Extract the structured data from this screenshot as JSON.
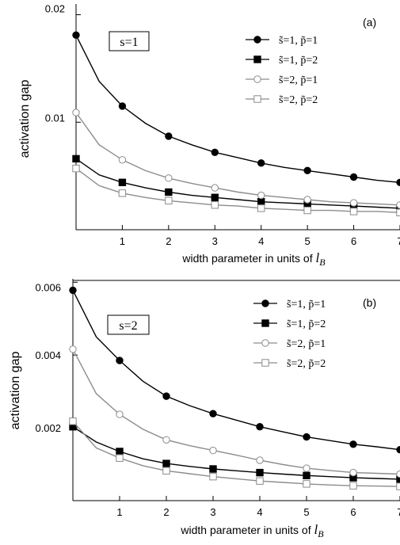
{
  "chart_data": [
    {
      "type": "line",
      "panel_label": "(a)",
      "inset_label": "s=1",
      "ylabel": "activation gap",
      "xlabel": "width parameter in units of",
      "xlabel_symbol": "l",
      "xlabel_subscript": "B",
      "xlim": [
        0,
        7
      ],
      "ylim": [
        0,
        0.021
      ],
      "xticks": [
        1,
        2,
        3,
        4,
        5,
        6,
        7
      ],
      "yticks": [
        0.01,
        0.02
      ],
      "ytick_labels": [
        "0.01",
        "0.02"
      ],
      "legend_position": "top-right",
      "series": [
        {
          "name": "s̃=1, p̃=1",
          "color": "#000000",
          "marker": "filled-circle",
          "x": [
            0,
            0.5,
            1,
            1.5,
            2,
            2.5,
            3,
            3.5,
            4,
            4.5,
            5,
            5.5,
            6,
            6.5,
            7
          ],
          "y": [
            0.0181,
            0.0138,
            0.0115,
            0.0099,
            0.0087,
            0.0079,
            0.0072,
            0.0067,
            0.0062,
            0.0058,
            0.0055,
            0.0052,
            0.0049,
            0.0046,
            0.0044
          ],
          "marker_indices": [
            0,
            2,
            4,
            6,
            8,
            10,
            12,
            14
          ]
        },
        {
          "name": "s̃=1, p̃=2",
          "color": "#000000",
          "marker": "filled-square",
          "x": [
            0,
            0.5,
            1,
            1.5,
            2,
            2.5,
            3,
            3.5,
            4,
            4.5,
            5,
            5.5,
            6,
            6.5,
            7
          ],
          "y": [
            0.0066,
            0.0051,
            0.0044,
            0.0039,
            0.0035,
            0.0032,
            0.003,
            0.0028,
            0.0026,
            0.0025,
            0.0024,
            0.0023,
            0.0022,
            0.0021,
            0.002
          ],
          "marker_indices": [
            0,
            2,
            4,
            6,
            8,
            10,
            12,
            14
          ]
        },
        {
          "name": "s̃=2, p̃=1",
          "color": "#8c8c8c",
          "marker": "open-circle",
          "x": [
            0,
            0.5,
            1,
            1.5,
            2,
            2.5,
            3,
            3.5,
            4,
            4.5,
            5,
            5.5,
            6,
            6.5,
            7
          ],
          "y": [
            0.0109,
            0.0079,
            0.0065,
            0.0055,
            0.0048,
            0.0043,
            0.0039,
            0.0035,
            0.0032,
            0.003,
            0.0028,
            0.0026,
            0.0025,
            0.0024,
            0.0023
          ],
          "marker_indices": [
            0,
            2,
            4,
            6,
            8,
            10,
            12,
            14
          ]
        },
        {
          "name": "s̃=2, p̃=2",
          "color": "#8c8c8c",
          "marker": "open-square",
          "x": [
            0,
            0.5,
            1,
            1.5,
            2,
            2.5,
            3,
            3.5,
            4,
            4.5,
            5,
            5.5,
            6,
            6.5,
            7
          ],
          "y": [
            0.0057,
            0.0041,
            0.0034,
            0.003,
            0.0027,
            0.0025,
            0.0023,
            0.0022,
            0.002,
            0.0019,
            0.0018,
            0.0018,
            0.0017,
            0.0017,
            0.0016
          ],
          "marker_indices": [
            0,
            2,
            4,
            6,
            8,
            10,
            12,
            14
          ]
        }
      ]
    },
    {
      "type": "line",
      "panel_label": "(b)",
      "inset_label": "s=2",
      "ylabel": "activation gap",
      "xlabel": "width parameter in units of",
      "xlabel_symbol": "l",
      "xlabel_subscript": "B",
      "xlim": [
        0,
        7
      ],
      "ylim": [
        0,
        0.00605
      ],
      "xticks": [
        1,
        2,
        3,
        4,
        5,
        6,
        7
      ],
      "yticks": [
        0.002,
        0.004,
        0.006
      ],
      "ytick_labels": [
        "0.002",
        "0.004",
        "0.006"
      ],
      "legend_position": "top-right",
      "series": [
        {
          "name": "s̃=1, p̃=1",
          "color": "#000000",
          "marker": "filled-circle",
          "x": [
            0,
            0.5,
            1,
            1.5,
            2,
            2.5,
            3,
            3.5,
            4,
            4.5,
            5,
            5.5,
            6,
            6.5,
            7
          ],
          "y": [
            0.00578,
            0.0045,
            0.00385,
            0.00328,
            0.00287,
            0.00261,
            0.00239,
            0.00221,
            0.00203,
            0.00189,
            0.00175,
            0.00165,
            0.00155,
            0.00148,
            0.0014
          ],
          "marker_indices": [
            0,
            2,
            4,
            6,
            8,
            10,
            12,
            14
          ]
        },
        {
          "name": "s̃=1, p̃=2",
          "color": "#000000",
          "marker": "filled-square",
          "x": [
            0,
            0.5,
            1,
            1.5,
            2,
            2.5,
            3,
            3.5,
            4,
            4.5,
            5,
            5.5,
            6,
            6.5,
            7
          ],
          "y": [
            0.00203,
            0.00161,
            0.00135,
            0.00115,
            0.00102,
            0.00094,
            0.00087,
            0.00082,
            0.00077,
            0.00073,
            0.00069,
            0.00066,
            0.00063,
            0.00061,
            0.00059
          ],
          "marker_indices": [
            0,
            2,
            4,
            6,
            8,
            10,
            12,
            14
          ]
        },
        {
          "name": "s̃=2, p̃=1",
          "color": "#8c8c8c",
          "marker": "open-circle",
          "x": [
            0,
            0.5,
            1,
            1.5,
            2,
            2.5,
            3,
            3.5,
            4,
            4.5,
            5,
            5.5,
            6,
            6.5,
            7
          ],
          "y": [
            0.00416,
            0.00294,
            0.00237,
            0.00196,
            0.00167,
            0.00151,
            0.00138,
            0.00125,
            0.00111,
            0.00099,
            0.00089,
            0.00083,
            0.00077,
            0.00075,
            0.00073
          ],
          "marker_indices": [
            0,
            2,
            4,
            6,
            8,
            10,
            12,
            14
          ]
        },
        {
          "name": "s̃=2, p̃=2",
          "color": "#8c8c8c",
          "marker": "open-square",
          "x": [
            0,
            0.5,
            1,
            1.5,
            2,
            2.5,
            3,
            3.5,
            4,
            4.5,
            5,
            5.5,
            6,
            6.5,
            7
          ],
          "y": [
            0.00218,
            0.00145,
            0.00117,
            0.00096,
            0.00082,
            0.00074,
            0.00066,
            0.0006,
            0.00054,
            0.0005,
            0.00046,
            0.00043,
            0.00041,
            0.0004,
            0.00039
          ],
          "marker_indices": [
            0,
            2,
            4,
            6,
            8,
            10,
            12,
            14
          ]
        }
      ]
    }
  ]
}
